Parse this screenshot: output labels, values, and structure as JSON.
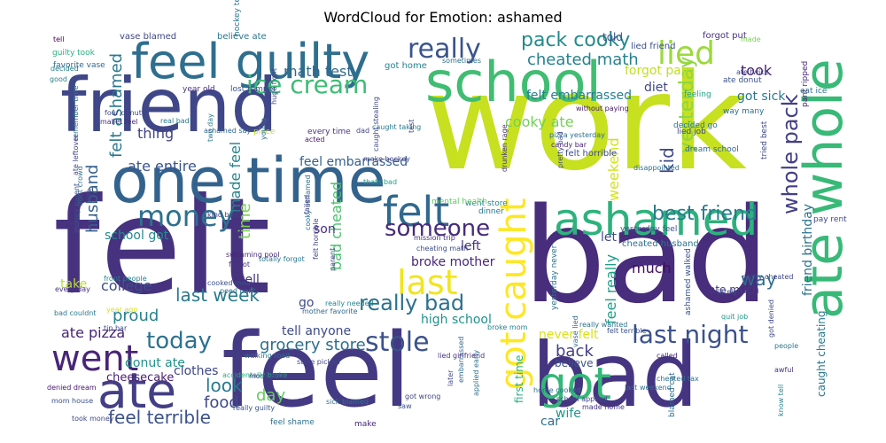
{
  "title": "WordCloud for Emotion: ashamed",
  "words": [
    {
      "text": "felt",
      "color": "#46327e"
    },
    {
      "text": "work",
      "color": "#c7e020"
    },
    {
      "text": "bad",
      "color": "#472d7b"
    },
    {
      "text": "feel",
      "color": "#443a83"
    },
    {
      "text": "bad",
      "color": "#453581"
    },
    {
      "text": "friend",
      "color": "#3f4788"
    },
    {
      "text": "school",
      "color": "#40bd72"
    },
    {
      "text": "one time",
      "color": "#33638d"
    },
    {
      "text": "feel guilty",
      "color": "#2e6e8e"
    },
    {
      "text": "ate whole",
      "color": "#38b977"
    },
    {
      "text": "ashamed",
      "color": "#2db27d"
    },
    {
      "text": "ate",
      "color": "#433e85"
    },
    {
      "text": "went",
      "color": "#482576"
    },
    {
      "text": "got",
      "color": "#35b779"
    },
    {
      "text": "felt",
      "color": "#31688e"
    },
    {
      "text": "money",
      "color": "#2c718e"
    },
    {
      "text": "lied",
      "color": "#9bd93c"
    },
    {
      "text": "really",
      "color": "#3a548c"
    },
    {
      "text": "got caught",
      "color": "#fde725"
    },
    {
      "text": "ice cream",
      "color": "#3dbc74"
    },
    {
      "text": "last",
      "color": "#f1e51d"
    },
    {
      "text": "stole",
      "color": "#3b528b"
    },
    {
      "text": "today",
      "color": "#2c728e"
    },
    {
      "text": "last night",
      "color": "#3b528b"
    },
    {
      "text": "someone",
      "color": "#472a7a"
    },
    {
      "text": "whole pack",
      "color": "#423f85"
    },
    {
      "text": "pack cooky",
      "color": "#228b8d"
    },
    {
      "text": "felt ashamed",
      "color": "#2a788e"
    },
    {
      "text": "best friend",
      "color": "#297b8e"
    },
    {
      "text": "really bad",
      "color": "#2c718e"
    },
    {
      "text": "yesterday",
      "color": "#8bd646"
    },
    {
      "text": "kid",
      "color": "#3f4889"
    },
    {
      "text": "cheated math",
      "color": "#26828e"
    },
    {
      "text": "math test",
      "color": "#31688e"
    },
    {
      "text": "husband",
      "color": "#34608d"
    },
    {
      "text": "time",
      "color": "#7ad151"
    },
    {
      "text": "look",
      "color": "#297a8e"
    },
    {
      "text": "food",
      "color": "#3f4889"
    },
    {
      "text": "day",
      "color": "#65cb5e"
    },
    {
      "text": "feel terrible",
      "color": "#3b518b"
    },
    {
      "text": "grocery store",
      "color": "#2e6f8e"
    },
    {
      "text": "last week",
      "color": "#297a8e"
    },
    {
      "text": "way",
      "color": "#2e6e8e"
    },
    {
      "text": "took",
      "color": "#482273"
    },
    {
      "text": "back",
      "color": "#433e85"
    },
    {
      "text": "much",
      "color": "#460b5e"
    },
    {
      "text": "ate entire",
      "color": "#39558c"
    },
    {
      "text": "made feel",
      "color": "#26828e"
    },
    {
      "text": "thing",
      "color": "#414487"
    },
    {
      "text": "feel embarrassed",
      "color": "#35608d"
    },
    {
      "text": "felt embarrassed",
      "color": "#277f8e"
    },
    {
      "text": "cooky ate",
      "color": "#73d056"
    },
    {
      "text": "weekend",
      "color": "#d2e21b"
    },
    {
      "text": "let",
      "color": "#3e4989"
    },
    {
      "text": "bad cheated",
      "color": "#4ac16d"
    },
    {
      "text": "broke mother",
      "color": "#482677"
    },
    {
      "text": "high school",
      "color": "#20928c"
    },
    {
      "text": "proud",
      "color": "#26828e"
    },
    {
      "text": "ate pizza",
      "color": "#482475"
    },
    {
      "text": "college",
      "color": "#3d4d8a"
    },
    {
      "text": "school got",
      "color": "#23898e"
    },
    {
      "text": "tell anyone",
      "color": "#3e4a89"
    },
    {
      "text": "forgot pay",
      "color": "#c0df25"
    },
    {
      "text": "diet",
      "color": "#3f4889"
    },
    {
      "text": "got sick",
      "color": "#2a788e"
    },
    {
      "text": "feel really",
      "color": "#1f9e89"
    },
    {
      "text": "friend birthday",
      "color": "#2c728e"
    },
    {
      "text": "never felt",
      "color": "#d8e219"
    },
    {
      "text": "left",
      "color": "#46337e"
    },
    {
      "text": "take",
      "color": "#b5de2b"
    },
    {
      "text": "well",
      "color": "#46307e"
    },
    {
      "text": "go",
      "color": "#3e4c8a"
    },
    {
      "text": "clothes",
      "color": "#3f4788"
    },
    {
      "text": "donut ate",
      "color": "#21918c"
    },
    {
      "text": "cheesecake",
      "color": "#481d6f"
    },
    {
      "text": "car",
      "color": "#2f6c8e"
    },
    {
      "text": "wife",
      "color": "#1f968b"
    },
    {
      "text": "believe",
      "color": "#3b528b"
    },
    {
      "text": "first time",
      "color": "#27ad81"
    },
    {
      "text": "caught cheating",
      "color": "#29798e"
    },
    {
      "text": "son",
      "color": "#472f7d"
    },
    {
      "text": "told",
      "color": "#3d4e8a"
    },
    {
      "text": "felt horrible",
      "color": "#3e4c8a"
    },
    {
      "text": "ate much",
      "color": "#453882"
    },
    {
      "text": "hockey team",
      "color": "#2b748e"
    },
    {
      "text": "got home",
      "color": "#26828e"
    },
    {
      "text": "lied friend",
      "color": "#3d4e8a"
    },
    {
      "text": "forgot put",
      "color": "#46327e"
    },
    {
      "text": "made",
      "color": "#7ad151"
    },
    {
      "text": "vase blamed",
      "color": "#3f4788"
    },
    {
      "text": "believe ate",
      "color": "#2a788e"
    },
    {
      "text": "guilty took",
      "color": "#29af7f"
    },
    {
      "text": "favorite vase",
      "color": "#31688e"
    },
    {
      "text": "tell",
      "color": "#440154"
    },
    {
      "text": "decided",
      "color": "#27808e"
    },
    {
      "text": "good",
      "color": "#26828e"
    },
    {
      "text": "sometimes",
      "color": "#2e6e8e"
    },
    {
      "text": "year old",
      "color": "#46337e"
    },
    {
      "text": "lost temper",
      "color": "#3b518b"
    },
    {
      "text": "feeling",
      "color": "#20a386"
    },
    {
      "text": "ate donut",
      "color": "#3b528b"
    },
    {
      "text": "eat ice",
      "color": "#2c728e"
    },
    {
      "text": "way many",
      "color": "#2e6e8e"
    },
    {
      "text": "ate twice",
      "color": "#3e4989"
    },
    {
      "text": "four donut",
      "color": "#404588"
    },
    {
      "text": "mallet feel",
      "color": "#472d7b"
    },
    {
      "text": "without paying",
      "color": "#481a6c"
    },
    {
      "text": "real bad",
      "color": "#2a788e"
    },
    {
      "text": "piece",
      "color": "#bddf26"
    },
    {
      "text": "every time",
      "color": "#46337e"
    },
    {
      "text": "acted",
      "color": "#481769"
    },
    {
      "text": "dad",
      "color": "#414487"
    },
    {
      "text": "caught taking",
      "color": "#2a788e"
    },
    {
      "text": "test",
      "color": "#3f4788"
    },
    {
      "text": "pizza yesterday",
      "color": "#2e6e8e"
    },
    {
      "text": "candy bar",
      "color": "#482576"
    },
    {
      "text": "pretty bad",
      "color": "#3e4a89"
    },
    {
      "text": "decided go",
      "color": "#2c728e"
    },
    {
      "text": "lied job",
      "color": "#3e4989"
    },
    {
      "text": "dream school",
      "color": "#31688e"
    },
    {
      "text": "pant ripped",
      "color": "#482677"
    },
    {
      "text": "tried best",
      "color": "#3e4989"
    },
    {
      "text": "make hockey",
      "color": "#404688"
    },
    {
      "text": "thats bad",
      "color": "#1fa188"
    },
    {
      "text": "went store",
      "color": "#25838e"
    },
    {
      "text": "drunken rage",
      "color": "#46327e"
    },
    {
      "text": "mental health",
      "color": "#5ec962"
    },
    {
      "text": "disappointed",
      "color": "#2d708e"
    },
    {
      "text": "pay rent",
      "color": "#3f4788"
    },
    {
      "text": "kind bad",
      "color": "#414487"
    },
    {
      "text": "dinner",
      "color": "#2a778e"
    },
    {
      "text": "mission trip",
      "color": "#472c7a"
    },
    {
      "text": "cheating math",
      "color": "#3e4c8a"
    },
    {
      "text": "swimming pool",
      "color": "#482677"
    },
    {
      "text": "cooked meal",
      "color": "#3b528b"
    },
    {
      "text": "peed pant",
      "color": "#2e6f8e"
    },
    {
      "text": "mother favorite",
      "color": "#31688e"
    },
    {
      "text": "really needed",
      "color": "#23898e"
    },
    {
      "text": "walking road",
      "color": "#2d708e"
    },
    {
      "text": "store picked",
      "color": "#3f4889"
    },
    {
      "text": "accidentally broke",
      "color": "#27ad81"
    },
    {
      "text": "denied dream",
      "color": "#481467"
    },
    {
      "text": "mom house",
      "color": "#3b528b"
    },
    {
      "text": "took money",
      "color": "#404588"
    },
    {
      "text": "year ago",
      "color": "#d5e21a"
    },
    {
      "text": "front people",
      "color": "#26828e"
    },
    {
      "text": "every day",
      "color": "#46327e"
    },
    {
      "text": "tip bar",
      "color": "#3e4c8a"
    },
    {
      "text": "bad couldnt",
      "color": "#2a788e"
    },
    {
      "text": "quit job",
      "color": "#1f958b"
    },
    {
      "text": "yesterday feel",
      "color": "#3d4e8a"
    },
    {
      "text": "cheated husband",
      "color": "#2c718e"
    },
    {
      "text": "guilty cheated",
      "color": "#404688"
    },
    {
      "text": "lately",
      "color": "#3b528b"
    },
    {
      "text": "people",
      "color": "#2a788e"
    },
    {
      "text": "called",
      "color": "#482576"
    },
    {
      "text": "cheated tax",
      "color": "#2d708e"
    },
    {
      "text": "last weekend",
      "color": "#2c728e"
    },
    {
      "text": "awful",
      "color": "#46317e"
    },
    {
      "text": "know tell",
      "color": "#25838e"
    },
    {
      "text": "got denied",
      "color": "#3e4989"
    },
    {
      "text": "blamed cat",
      "color": "#2f6c8e"
    },
    {
      "text": "ashamed walked",
      "color": "#3b518b"
    },
    {
      "text": "yesterday never",
      "color": "#2c728e"
    },
    {
      "text": "school applied",
      "color": "#3f4788"
    },
    {
      "text": "made home",
      "color": "#46337e"
    },
    {
      "text": "home cooked",
      "color": "#2e6e8e"
    },
    {
      "text": "saw",
      "color": "#3b518b"
    },
    {
      "text": "got wrong",
      "color": "#404588"
    },
    {
      "text": "sick blamed",
      "color": "#2c728e"
    },
    {
      "text": "embarrassed",
      "color": "#31688e"
    },
    {
      "text": "applied early",
      "color": "#2c728e"
    },
    {
      "text": "really guilty",
      "color": "#3b528b"
    },
    {
      "text": "mom vase",
      "color": "#404588"
    },
    {
      "text": "feel shame",
      "color": "#2d708e"
    },
    {
      "text": "make",
      "color": "#482677"
    },
    {
      "text": "later",
      "color": "#3f4788"
    },
    {
      "text": "lied girlfriend",
      "color": "#46337e"
    },
    {
      "text": "broke mom",
      "color": "#26828e"
    },
    {
      "text": "vase lied",
      "color": "#31688e"
    },
    {
      "text": "really wanted",
      "color": "#2c718e"
    },
    {
      "text": "felt terrible",
      "color": "#3b518b"
    },
    {
      "text": "parent",
      "color": "#404688"
    },
    {
      "text": "totally forgot",
      "color": "#2a788e"
    },
    {
      "text": "felt horrible",
      "color": "#3f4788"
    },
    {
      "text": "forgot",
      "color": "#46337e"
    },
    {
      "text": "front crowd",
      "color": "#2c728e"
    },
    {
      "text": "money parent",
      "color": "#3b528b"
    },
    {
      "text": "remember time",
      "color": "#2d708e"
    },
    {
      "text": "ate leftover",
      "color": "#404588"
    },
    {
      "text": "life",
      "color": "#3e4989"
    },
    {
      "text": "two day",
      "color": "#2a788e"
    },
    {
      "text": "ashamed say",
      "color": "#31688e"
    },
    {
      "text": "young",
      "color": "#2e6e8e"
    },
    {
      "text": "huge fight",
      "color": "#3f4788"
    },
    {
      "text": "caught stealing",
      "color": "#3e4c8a"
    },
    {
      "text": "cooky ashamed",
      "color": "#2c728e"
    },
    {
      "text": "failed",
      "color": "#404588"
    }
  ]
}
